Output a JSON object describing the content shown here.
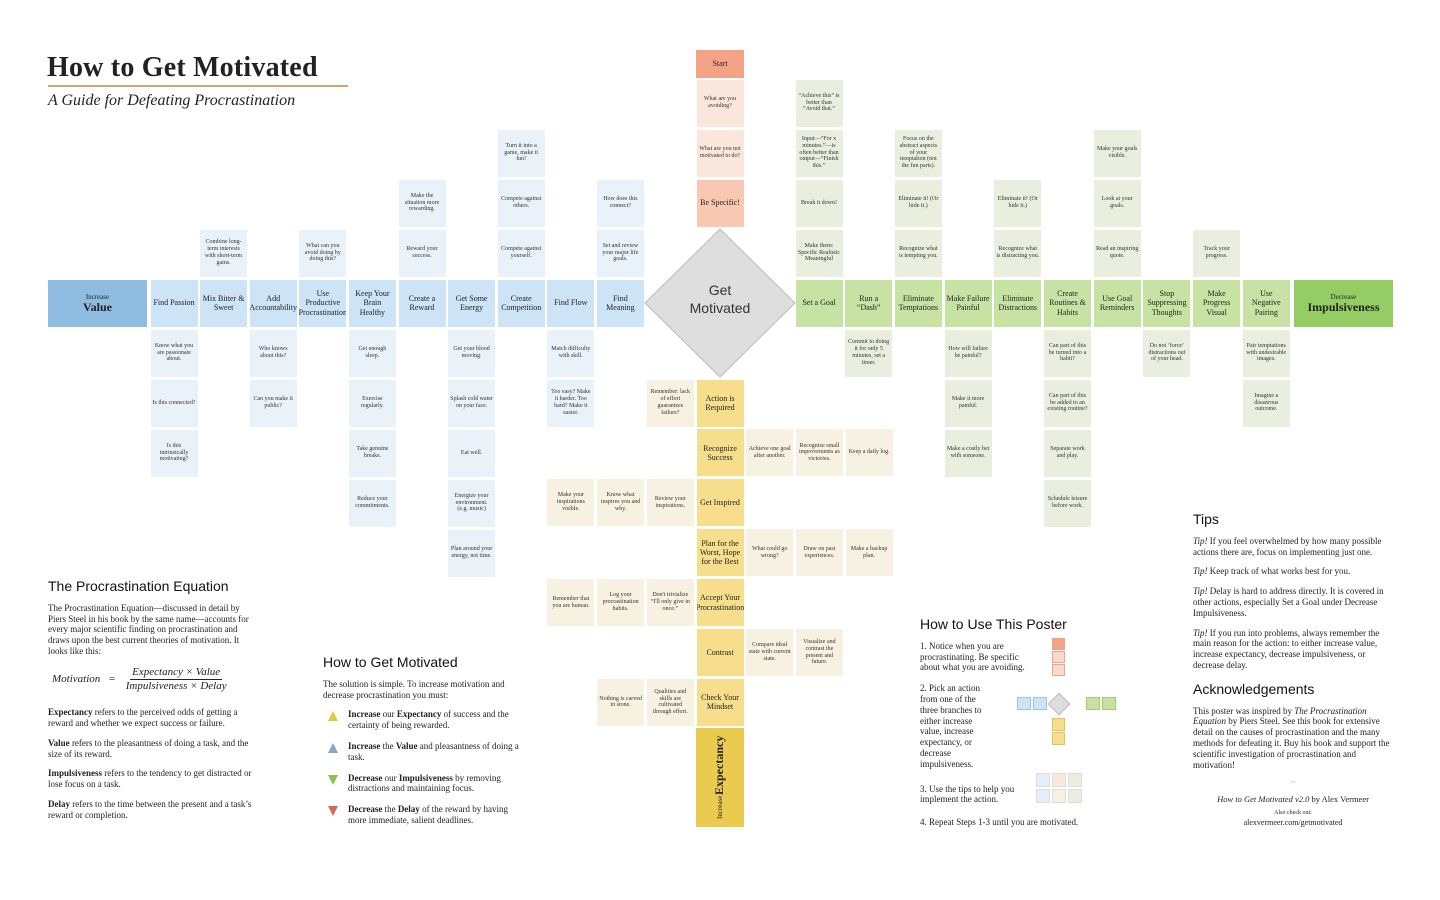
{
  "header": {
    "title": "How to Get Motivated",
    "subtitle": "A Guide for Defeating Procrastination"
  },
  "start": {
    "label": "Start",
    "questions": [
      "What are you avoiding?",
      "What are you not motivated to do?"
    ],
    "step": "Be Specific!"
  },
  "center": "Get Motivated",
  "value_branch": {
    "prefix": "Increase",
    "label": "Value",
    "actions": [
      {
        "label": "Find Passion",
        "tips": [
          "Know what you are passionate about.",
          "Is this connected?",
          "Is this intrinsically motivating?"
        ]
      },
      {
        "label": "Mix Bitter & Sweet",
        "tips": [
          "Combine long-term interests with short-term gains."
        ]
      },
      {
        "label": "Add Accountability",
        "tips": [
          "Who knows about this?",
          "Can you make it public?"
        ]
      },
      {
        "label": "Use Productive Procrastination",
        "tips": [
          "What can you avoid doing by doing this?"
        ]
      },
      {
        "label": "Keep Your Brain Healthy",
        "tips": [
          "Get enough sleep.",
          "Exercise regularly.",
          "Take genuine breaks.",
          "Reduce your commitments."
        ]
      },
      {
        "label": "Create a Reward",
        "tips": [
          "Reward your success.",
          "Make the situation more rewarding."
        ]
      },
      {
        "label": "Get Some Energy",
        "tips": [
          "Get your blood moving.",
          "Splash cold water on your face.",
          "Eat well.",
          "Energize your environment. (e.g. music)",
          "Plan around your energy, not time."
        ]
      },
      {
        "label": "Create Competition",
        "tips": [
          "Compete against yourself.",
          "Compete against others.",
          "Turn it into a game, make it fun!"
        ]
      },
      {
        "label": "Find Flow",
        "tips": [
          "Match difficulty with skill.",
          "Too easy? Make it harder. Too hard? Make it easier."
        ]
      },
      {
        "label": "Find Meaning",
        "tips": [
          "Set and review your major life goals.",
          "How does this connect?"
        ]
      }
    ]
  },
  "impulsiveness_branch": {
    "prefix": "Decrease",
    "label": "Impulsiveness",
    "actions": [
      {
        "label": "Set a Goal",
        "tips": [
          "Make them: Specific Realistic Meaningful",
          "Break it down!",
          "Input—“For x minutes.”—is often better than output—“Finish this.”",
          "“Achieve this” is better than “Avoid that.”"
        ]
      },
      {
        "label": "Run a “Dash”",
        "tips": [
          "Commit to doing it for only 5 minutes, set a timer."
        ]
      },
      {
        "label": "Eliminate Temptations",
        "tips": [
          "Recognize what is tempting you.",
          "Eliminate it! (Or hide it.)",
          "Focus on the abstract aspects of your temptation (not the fun parts)."
        ]
      },
      {
        "label": "Make Failure Painful",
        "tips": [
          "How will failure be painful?",
          "Make it more painful.",
          "Make a costly bet with someone."
        ]
      },
      {
        "label": "Eliminate Distractions",
        "tips": [
          "Recognize what is distracting you.",
          "Eliminate it! (Or hide it.)"
        ]
      },
      {
        "label": "Create Routines & Habits",
        "tips": [
          "Can part of this be turned into a habit?",
          "Can part of this be added to an existing routine?",
          "Separate work and play.",
          "Schedule leisure before work."
        ]
      },
      {
        "label": "Use Goal Reminders",
        "tips": [
          "Read an inspiring quote.",
          "Look at your goals.",
          "Make your goals visible."
        ]
      },
      {
        "label": "Stop Suppressing Thoughts",
        "tips": [
          "Do not ‘force’ distractions out of your head."
        ]
      },
      {
        "label": "Make Progress Visual",
        "tips": [
          "Track your progress."
        ]
      },
      {
        "label": "Use Negative Pairing",
        "tips": [
          "Pair temptations with undesirable images.",
          "Imagine a disastrous outcome."
        ]
      }
    ]
  },
  "expectancy_branch": {
    "prefix": "Increase",
    "label": "Expectancy",
    "actions": [
      {
        "label": "Action is Required",
        "tips": [
          "Remember: lack of effort guarantees failure?"
        ]
      },
      {
        "label": "Recognize Success",
        "tips": [
          "Achieve one goal after another.",
          "Recognize small improvements as victories.",
          "Keep a daily log."
        ]
      },
      {
        "label": "Get Inspired",
        "tips": [
          "Review your inspirations.",
          "Know what inspires you and why.",
          "Make your inspirations visible."
        ]
      },
      {
        "label": "Plan for the Worst, Hope for the Best",
        "tips": [
          "What could go wrong?",
          "Draw on past experiences.",
          "Make a backup plan."
        ]
      },
      {
        "label": "Accept Your Procrastination",
        "tips": [
          "Don't trivialize “I'll only give in once.”",
          "Log your procrastination habits.",
          "Remember that you are human."
        ]
      },
      {
        "label": "Contrast",
        "tips": [
          "Compare ideal state with current state.",
          "Visualize and contrast the present and future."
        ]
      },
      {
        "label": "Check Your Mindset",
        "tips": [
          "Qualities and skills are cultivated through effort.",
          "Nothing is carved in stone."
        ]
      }
    ]
  },
  "equation": {
    "title": "The Procrastination Equation",
    "intro": "The Procrastination Equation—discussed in detail by Piers Steel in his book by the same name—accounts for every major scientific finding on procrastination and draws upon the best current theories of motivation. It looks like this:",
    "lhs": "Motivation",
    "eq": "=",
    "numerator": "Expectancy × Value",
    "denominator": "Impulsiveness × Delay",
    "definitions": [
      {
        "term": "Expectancy",
        "text": "refers to the perceived odds of getting a reward and whether we expect success or failure."
      },
      {
        "term": "Value",
        "text": "refers to the pleasantness of doing a task, and the size of its reward."
      },
      {
        "term": "Impulsiveness",
        "text": "refers to the tendency to get distracted or lose focus on a task."
      },
      {
        "term": "Delay",
        "text": "refers to the time between the present and a task’s reward or completion."
      }
    ]
  },
  "solution": {
    "title": "How to Get Motivated",
    "intro": "The solution is simple. To increase motivation and decrease procrastination you must:",
    "items": [
      {
        "verb": "Increase",
        "middle": "our",
        "term": "Expectancy",
        "rest": "of success and the certainty of being rewarded."
      },
      {
        "verb": "Increase",
        "middle": "the",
        "term": "Value",
        "rest": "and pleasantness of doing a task."
      },
      {
        "verb": "Decrease",
        "middle": "our",
        "term": "Impulsiveness",
        "rest": "by removing distractions and maintaining focus."
      },
      {
        "verb": "Decrease",
        "middle": "the",
        "term": "Delay",
        "rest": "of the reward by having more immediate, salient deadlines."
      }
    ]
  },
  "usage": {
    "title": "How to Use This Poster",
    "steps": [
      "1. Notice when you are procrastinating. Be specific about what you are avoiding.",
      "2. Pick an action from one of the three branches to either increase value, increase expectancy, or decrease impulsiveness.",
      "3. Use the tips to help you implement the action.",
      "4. Repeat Steps 1-3 until you are motivated."
    ]
  },
  "tips": {
    "title": "Tips",
    "items": [
      {
        "label": "Tip!",
        "text": "If you feel overwhelmed by how many possible actions there are, focus on implementing just one."
      },
      {
        "label": "Tip!",
        "text": "Keep track of what works best for you."
      },
      {
        "label": "Tip!",
        "text": "Delay is hard to address directly. It is covered in other actions, especially Set a Goal under Decrease Impulsiveness."
      },
      {
        "label": "Tip!",
        "text": "If you run into problems, always remember the main reason for the action: to either increase value, increase expectancy, decrease impulsiveness, or decrease delay."
      }
    ]
  },
  "acknowledgements": {
    "title": "Acknowledgements",
    "before": "This poster was inspired by",
    "book": "The Procrastination Equation",
    "after": "by Piers Steel. See this book for extensive detail on the causes of procrastination and the many methods for defeating it. Buy his book and support the scientific investigation of procrastination and motivation!",
    "credit_title": "How to Get Motivated v2.0",
    "credit_by": "by Alex Vermeer",
    "also": "Also check out:",
    "url": "alexvermeer.com/getmotivated"
  }
}
